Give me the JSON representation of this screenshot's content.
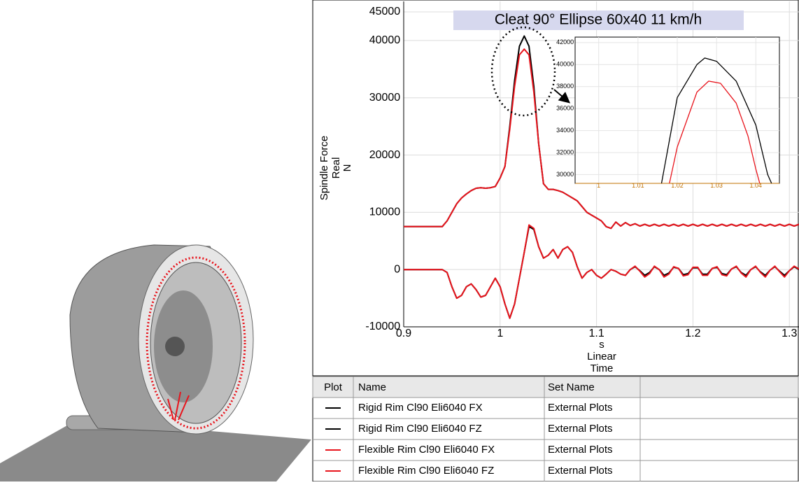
{
  "chart_data": [
    {
      "type": "line",
      "title": "Cleat 90° Ellipse 60x40  11 km/h",
      "ylabel": [
        "Spindle Force",
        "Real",
        "N"
      ],
      "xlabel": [
        "s",
        "Linear",
        "Time"
      ],
      "xlim": [
        0.9,
        1.31
      ],
      "ylim": [
        -10000,
        45000
      ],
      "xticks": [
        0.9,
        1,
        1.1,
        1.2,
        1.3
      ],
      "yticks": [
        -10000,
        0,
        10000,
        20000,
        30000,
        40000,
        45000
      ],
      "grid": true,
      "x": [
        0.9,
        0.905,
        0.91,
        0.915,
        0.92,
        0.925,
        0.93,
        0.935,
        0.94,
        0.945,
        0.95,
        0.955,
        0.96,
        0.965,
        0.97,
        0.975,
        0.98,
        0.985,
        0.99,
        0.995,
        1.0,
        1.005,
        1.01,
        1.015,
        1.02,
        1.025,
        1.03,
        1.035,
        1.04,
        1.045,
        1.05,
        1.055,
        1.06,
        1.065,
        1.07,
        1.075,
        1.08,
        1.085,
        1.09,
        1.095,
        1.1,
        1.105,
        1.11,
        1.115,
        1.12,
        1.125,
        1.13,
        1.135,
        1.14,
        1.145,
        1.15,
        1.155,
        1.16,
        1.165,
        1.17,
        1.175,
        1.18,
        1.185,
        1.19,
        1.195,
        1.2,
        1.205,
        1.21,
        1.215,
        1.22,
        1.225,
        1.23,
        1.235,
        1.24,
        1.245,
        1.25,
        1.255,
        1.26,
        1.265,
        1.27,
        1.275,
        1.28,
        1.285,
        1.29,
        1.295,
        1.3,
        1.305,
        1.31
      ],
      "series": [
        {
          "name": "Rigid Rim Cl90 Eli6040 FX",
          "color": "#000000",
          "values": [
            0,
            0,
            0,
            0,
            0,
            0,
            0,
            0,
            0,
            -500,
            -3000,
            -5000,
            -4500,
            -3000,
            -2500,
            -3500,
            -4800,
            -4500,
            -3000,
            -1500,
            -3000,
            -6000,
            -8500,
            -6000,
            -1500,
            3000,
            7500,
            7000,
            4000,
            2000,
            2500,
            3500,
            2000,
            3500,
            4000,
            3000,
            500,
            -1500,
            -500,
            0,
            -1000,
            -1500,
            -800,
            0,
            -300,
            -800,
            -1000,
            0,
            500,
            -200,
            -1000,
            -500,
            500,
            0,
            -1000,
            -600,
            400,
            200,
            -900,
            -700,
            300,
            300,
            -800,
            -800,
            200,
            400,
            -700,
            -900,
            100,
            500,
            -500,
            -1000,
            0,
            500,
            -400,
            -1000,
            -100,
            500,
            -300,
            -1000,
            -200,
            500,
            0
          ]
        },
        {
          "name": "Rigid Rim Cl90 Eli6040 FZ",
          "color": "#000000",
          "values": [
            7500,
            7500,
            7500,
            7500,
            7500,
            7500,
            7500,
            7500,
            7500,
            8500,
            10000,
            11500,
            12500,
            13200,
            13800,
            14200,
            14300,
            14200,
            14300,
            14500,
            16000,
            18000,
            25000,
            33000,
            39000,
            40800,
            39000,
            32000,
            22000,
            15000,
            14000,
            14000,
            13800,
            13500,
            13000,
            12500,
            12000,
            11000,
            10000,
            9500,
            9000,
            8500,
            7500,
            7200,
            8300,
            7600,
            8200,
            7700,
            8000,
            7600,
            7900,
            7600,
            7900,
            7600,
            7900,
            7600,
            7900,
            7600,
            7900,
            7600,
            7900,
            7600,
            7900,
            7600,
            7900,
            7600,
            7900,
            7600,
            7900,
            7600,
            7900,
            7600,
            7900,
            7600,
            7900,
            7600,
            7900,
            7600,
            7900,
            7600,
            7900,
            7600,
            7900
          ]
        },
        {
          "name": "Flexible Rim Cl90 Eli6040 FX",
          "color": "#e8141c",
          "values": [
            0,
            0,
            0,
            0,
            0,
            0,
            0,
            0,
            0,
            -500,
            -3000,
            -5000,
            -4500,
            -3000,
            -2500,
            -3500,
            -4800,
            -4500,
            -3000,
            -1500,
            -3000,
            -6000,
            -8500,
            -6000,
            -1500,
            3000,
            7800,
            7200,
            4000,
            2000,
            2500,
            3500,
            2000,
            3500,
            4000,
            3000,
            500,
            -1500,
            -500,
            0,
            -1000,
            -1500,
            -800,
            0,
            -300,
            -800,
            -1000,
            0,
            600,
            -300,
            -1300,
            -700,
            600,
            0,
            -1300,
            -800,
            500,
            200,
            -1100,
            -900,
            400,
            400,
            -1000,
            -1000,
            200,
            500,
            -900,
            -1100,
            100,
            600,
            -600,
            -1300,
            0,
            600,
            -500,
            -1300,
            -100,
            600,
            -400,
            -1300,
            -200,
            600,
            100
          ]
        },
        {
          "name": "Flexible Rim Cl90 Eli6040 FZ",
          "color": "#e8141c",
          "values": [
            7500,
            7500,
            7500,
            7500,
            7500,
            7500,
            7500,
            7500,
            7500,
            8500,
            10000,
            11500,
            12500,
            13200,
            13800,
            14200,
            14300,
            14200,
            14300,
            14500,
            16000,
            18000,
            24500,
            32000,
            37500,
            38500,
            37500,
            31000,
            22000,
            15000,
            14000,
            14000,
            13800,
            13500,
            13000,
            12500,
            12000,
            11000,
            10000,
            9500,
            9000,
            8500,
            7500,
            7200,
            8300,
            7600,
            8200,
            7700,
            8000,
            7600,
            7900,
            7600,
            7900,
            7600,
            7900,
            7600,
            7900,
            7600,
            7900,
            7600,
            7900,
            7600,
            7900,
            7600,
            7900,
            7600,
            7900,
            7600,
            7900,
            7600,
            7900,
            7600,
            7900,
            7600,
            7900,
            7600,
            7900,
            7600,
            7900,
            7600,
            7900,
            7600,
            7900
          ]
        }
      ]
    },
    {
      "type": "line",
      "xlim": [
        0.994,
        1.046
      ],
      "ylim": [
        29200,
        42500
      ],
      "xticks": [
        1,
        1.01,
        1.02,
        1.03,
        1.04
      ],
      "yticks": [
        30000,
        32000,
        34000,
        36000,
        38000,
        40000,
        42000
      ],
      "grid": true,
      "series": [
        {
          "color": "#000000",
          "x": [
            1.016,
            1.02,
            1.025,
            1.027,
            1.03,
            1.035,
            1.04,
            1.043,
            1.044
          ],
          "values": [
            29200,
            37000,
            40000,
            40600,
            40300,
            38500,
            34500,
            30000,
            29200
          ]
        },
        {
          "color": "#e8141c",
          "x": [
            1.018,
            1.02,
            1.025,
            1.028,
            1.031,
            1.035,
            1.038,
            1.04,
            1.041
          ],
          "values": [
            29200,
            32500,
            37500,
            38500,
            38300,
            36500,
            33500,
            30500,
            29200
          ]
        }
      ]
    }
  ],
  "table": {
    "headers": [
      "Plot",
      "Name",
      "Set Name"
    ],
    "set_names": [
      "External Plots",
      "External Plots",
      "External Plots",
      "External Plots"
    ]
  }
}
